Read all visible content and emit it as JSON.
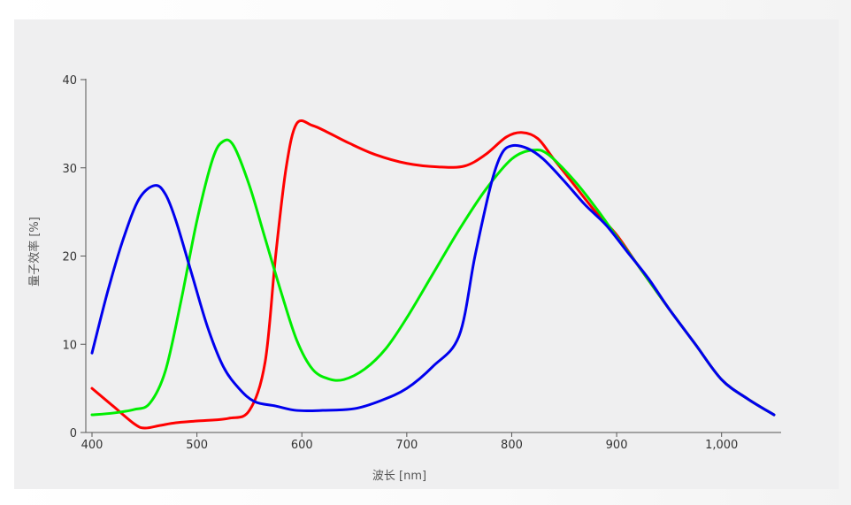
{
  "chart_data": {
    "type": "line",
    "xlabel": "波长 [nm]",
    "ylabel": "量子效率 [%]",
    "xlim": [
      400,
      1050
    ],
    "ylim": [
      0,
      40
    ],
    "x_ticks": [
      {
        "value": 400,
        "label": "400"
      },
      {
        "value": 500,
        "label": "500"
      },
      {
        "value": 600,
        "label": "600"
      },
      {
        "value": 700,
        "label": "700"
      },
      {
        "value": 800,
        "label": "800"
      },
      {
        "value": 900,
        "label": "900"
      },
      {
        "value": 1000,
        "label": "1,000"
      }
    ],
    "y_ticks": [
      {
        "value": 0,
        "label": "0"
      },
      {
        "value": 10,
        "label": "10"
      },
      {
        "value": 20,
        "label": "20"
      },
      {
        "value": 30,
        "label": "30"
      },
      {
        "value": 40,
        "label": "40"
      }
    ],
    "grid": false,
    "series": [
      {
        "color": "#ff0000",
        "points": [
          [
            400,
            5
          ],
          [
            420,
            3
          ],
          [
            440,
            1
          ],
          [
            450,
            0.5
          ],
          [
            465,
            0.8
          ],
          [
            480,
            1.1
          ],
          [
            500,
            1.3
          ],
          [
            530,
            1.6
          ],
          [
            550,
            2.5
          ],
          [
            565,
            8
          ],
          [
            575,
            20
          ],
          [
            585,
            30
          ],
          [
            595,
            35
          ],
          [
            610,
            34.8
          ],
          [
            625,
            34
          ],
          [
            645,
            32.8
          ],
          [
            670,
            31.5
          ],
          [
            700,
            30.5
          ],
          [
            730,
            30.1
          ],
          [
            755,
            30.2
          ],
          [
            775,
            31.5
          ],
          [
            795,
            33.5
          ],
          [
            810,
            34
          ],
          [
            825,
            33.3
          ],
          [
            840,
            31
          ],
          [
            860,
            28
          ],
          [
            880,
            25
          ],
          [
            900,
            22.4
          ],
          [
            920,
            19
          ],
          [
            950,
            14
          ],
          [
            975,
            10
          ],
          [
            1000,
            6
          ],
          [
            1025,
            3.8
          ],
          [
            1050,
            2
          ]
        ]
      },
      {
        "color": "#00ee00",
        "points": [
          [
            400,
            2
          ],
          [
            420,
            2.2
          ],
          [
            440,
            2.6
          ],
          [
            455,
            3.3
          ],
          [
            470,
            7
          ],
          [
            485,
            15
          ],
          [
            500,
            24
          ],
          [
            515,
            31
          ],
          [
            525,
            33
          ],
          [
            535,
            32.5
          ],
          [
            550,
            28
          ],
          [
            565,
            22
          ],
          [
            580,
            16
          ],
          [
            595,
            10.5
          ],
          [
            610,
            7.2
          ],
          [
            625,
            6.1
          ],
          [
            640,
            6
          ],
          [
            660,
            7.2
          ],
          [
            680,
            9.5
          ],
          [
            700,
            13
          ],
          [
            725,
            18
          ],
          [
            750,
            23
          ],
          [
            775,
            27.5
          ],
          [
            800,
            31
          ],
          [
            820,
            32
          ],
          [
            835,
            31.5
          ],
          [
            860,
            28.5
          ],
          [
            880,
            25.5
          ],
          [
            900,
            22.2
          ],
          [
            920,
            19
          ],
          [
            950,
            14
          ],
          [
            975,
            10
          ],
          [
            1000,
            6
          ],
          [
            1025,
            3.8
          ],
          [
            1050,
            2
          ]
        ]
      },
      {
        "color": "#0000ee",
        "points": [
          [
            400,
            9
          ],
          [
            415,
            16
          ],
          [
            430,
            22
          ],
          [
            445,
            26.5
          ],
          [
            460,
            28
          ],
          [
            470,
            27
          ],
          [
            480,
            24
          ],
          [
            495,
            18
          ],
          [
            510,
            12
          ],
          [
            525,
            7.5
          ],
          [
            540,
            5
          ],
          [
            555,
            3.5
          ],
          [
            575,
            3
          ],
          [
            595,
            2.5
          ],
          [
            620,
            2.5
          ],
          [
            650,
            2.7
          ],
          [
            675,
            3.6
          ],
          [
            700,
            5
          ],
          [
            725,
            7.5
          ],
          [
            750,
            11
          ],
          [
            765,
            20
          ],
          [
            780,
            28
          ],
          [
            790,
            31.5
          ],
          [
            800,
            32.5
          ],
          [
            815,
            32.2
          ],
          [
            830,
            31
          ],
          [
            850,
            28.5
          ],
          [
            870,
            25.8
          ],
          [
            890,
            23.5
          ],
          [
            910,
            20.5
          ],
          [
            930,
            17.5
          ],
          [
            950,
            14
          ],
          [
            975,
            10
          ],
          [
            1000,
            6
          ],
          [
            1025,
            3.8
          ],
          [
            1050,
            2
          ]
        ]
      }
    ]
  }
}
